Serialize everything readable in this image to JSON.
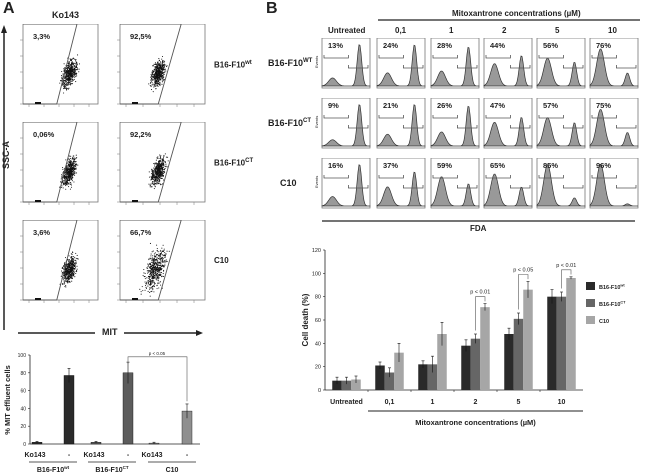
{
  "panel_a": {
    "label": "A",
    "column_header": "Ko143",
    "y_axis_label": "SSC-A",
    "x_axis_label": "MIT",
    "rows": [
      {
        "name": "B16-F10",
        "sup": "wt",
        "values": [
          "3,3%",
          "92,5%"
        ]
      },
      {
        "name": "B16-F10",
        "sup": "CT",
        "values": [
          "0,06%",
          "92,2%"
        ]
      },
      {
        "name": "C10",
        "sup": "",
        "values": [
          "3,6%",
          "66,7%"
        ]
      }
    ]
  },
  "panel_b": {
    "label": "B",
    "header": "Mitoxantrone concentrations (µM)",
    "columns": [
      "Untreated",
      "0,1",
      "1",
      "2",
      "5",
      "10"
    ],
    "x_axis_label": "FDA",
    "hist_y_label": "Events",
    "rows": [
      {
        "name": "B16-F10",
        "sup": "WT",
        "values": [
          "13%",
          "24%",
          "28%",
          "44%",
          "56%",
          "76%"
        ]
      },
      {
        "name": "B16-F10",
        "sup": "CT",
        "values": [
          "9%",
          "21%",
          "26%",
          "47%",
          "57%",
          "75%"
        ]
      },
      {
        "name": "C10",
        "sup": "",
        "values": [
          "16%",
          "37%",
          "59%",
          "65%",
          "85%",
          "96%"
        ]
      }
    ]
  },
  "chart_data": [
    {
      "type": "bar",
      "title": "",
      "ylabel": "% MIT effluent cells",
      "ylim": [
        0,
        100
      ],
      "yticks": [
        "0",
        "20",
        "40",
        "60",
        "80",
        "100"
      ],
      "treatments": [
        "Ko143",
        "-",
        "Ko143",
        "-",
        "Ko143",
        "-"
      ],
      "groups": [
        {
          "name": "B16-F10",
          "sup": "wt"
        },
        {
          "name": "B16-F10",
          "sup": "CT"
        },
        {
          "name": "C10",
          "sup": ""
        }
      ],
      "values": [
        2,
        77,
        2,
        80,
        1,
        37
      ],
      "errors": [
        1,
        8,
        1,
        12,
        1,
        8
      ],
      "colors": [
        "#2a2a2a",
        "#2a2a2a",
        "#5c5c5c",
        "#5c5c5c",
        "#8f8f8f",
        "#8f8f8f"
      ],
      "annotation": "p < 0.05"
    },
    {
      "type": "bar",
      "ylabel": "Cell death (%)",
      "xlabel": "Mitoxantrone concentrations (µM)",
      "ylim": [
        0,
        120
      ],
      "yticks": [
        "0",
        "20",
        "40",
        "60",
        "80",
        "100",
        "120"
      ],
      "categories": [
        "Untreated",
        "0,1",
        "1",
        "2",
        "5",
        "10"
      ],
      "series": [
        {
          "name": "B16-F10",
          "sup": "wt",
          "color": "#2a2a2a",
          "values": [
            8,
            21,
            22,
            38,
            48,
            80
          ],
          "errors": [
            3,
            3,
            3,
            5,
            5,
            6
          ]
        },
        {
          "name": "B16-F10",
          "sup": "CT",
          "color": "#666666",
          "values": [
            8,
            15,
            22,
            44,
            61,
            80
          ],
          "errors": [
            3,
            4,
            7,
            4,
            5,
            4
          ]
        },
        {
          "name": "C10",
          "sup": "",
          "color": "#a6a6a6",
          "values": [
            9,
            32,
            48,
            71,
            86,
            96
          ],
          "errors": [
            3,
            8,
            10,
            3,
            7,
            1
          ]
        }
      ],
      "legend_position": "right",
      "annotations": [
        {
          "category": "2",
          "text": "p < 0.01"
        },
        {
          "category": "5",
          "text": "p < 0.05"
        },
        {
          "category": "10",
          "text": "p < 0.01"
        }
      ]
    }
  ]
}
